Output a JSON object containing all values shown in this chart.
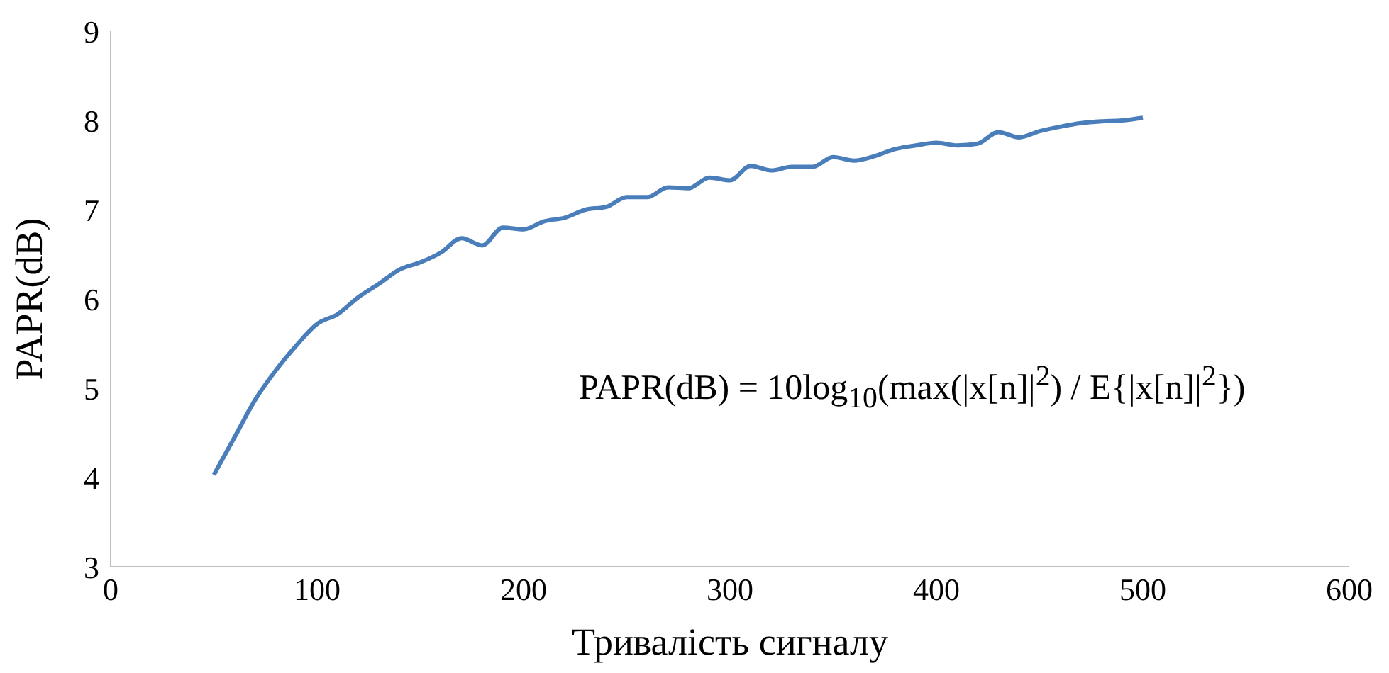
{
  "chart_data": {
    "type": "line",
    "xlabel": "Тривалість сигналу",
    "ylabel": "PAPR(dB)",
    "annotations": [
      "PAPR(dB) = 10log$_{10}$(max(|x[n]|$^{2}$) / E{|x[n]|$^{2}$})"
    ],
    "x": [
      50,
      60,
      70,
      80,
      90,
      100,
      110,
      120,
      130,
      140,
      150,
      160,
      170,
      180,
      190,
      200,
      210,
      220,
      230,
      240,
      250,
      260,
      270,
      280,
      290,
      300,
      310,
      320,
      330,
      340,
      350,
      360,
      370,
      380,
      390,
      400,
      410,
      420,
      430,
      440,
      450,
      460,
      470,
      480,
      490,
      500
    ],
    "series": [
      {
        "color": "#4a7ebb",
        "values": [
          4.03,
          4.45,
          4.87,
          5.2,
          5.48,
          5.72,
          5.83,
          6.02,
          6.17,
          6.33,
          6.41,
          6.52,
          6.68,
          6.6,
          6.8,
          6.78,
          6.87,
          6.91,
          7.0,
          7.03,
          7.14,
          7.14,
          7.25,
          7.24,
          7.36,
          7.33,
          7.49,
          7.44,
          7.48,
          7.48,
          7.59,
          7.55,
          7.6,
          7.68,
          7.72,
          7.75,
          7.72,
          7.74,
          7.87,
          7.81,
          7.88,
          7.93,
          7.97,
          7.99,
          8.0,
          8.03
        ]
      }
    ],
    "xlim": [
      0,
      600
    ],
    "xticks": [
      0,
      100,
      200,
      300,
      400,
      500,
      600
    ],
    "ylim": [
      3,
      9
    ],
    "yticks": [
      3,
      4,
      5,
      6,
      7,
      8,
      9
    ],
    "grid": false,
    "marker": "none",
    "line_style": "solid"
  }
}
